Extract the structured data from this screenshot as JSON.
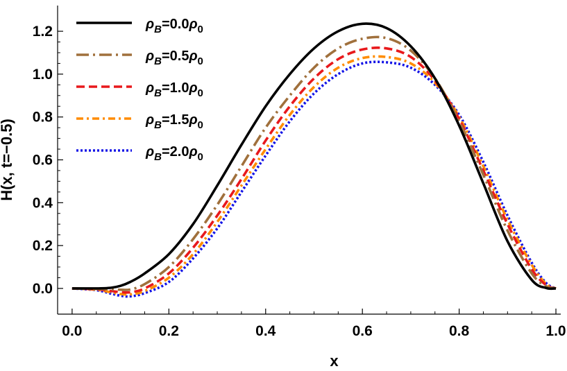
{
  "chart_data": {
    "type": "line",
    "title": "",
    "xlabel": "x",
    "ylabel": "H(x, t=−0.5)",
    "xlim": [
      -0.03,
      1.01
    ],
    "ylim": [
      -0.12,
      1.32
    ],
    "xticks": [
      0.0,
      0.2,
      0.4,
      0.6,
      0.8,
      1.0
    ],
    "xtick_labels": [
      "0.0",
      "0.2",
      "0.4",
      "0.6",
      "0.8",
      "1.0"
    ],
    "yticks": [
      0.0,
      0.2,
      0.4,
      0.6,
      0.8,
      1.0,
      1.2
    ],
    "ytick_labels": [
      "0.0",
      "0.2",
      "0.4",
      "0.6",
      "0.8",
      "1.0",
      "1.2"
    ],
    "grid": false,
    "legend_position": "top-left",
    "x": [
      0.0,
      0.05,
      0.08,
      0.1,
      0.12,
      0.15,
      0.2,
      0.25,
      0.3,
      0.35,
      0.4,
      0.45,
      0.5,
      0.55,
      0.6,
      0.65,
      0.7,
      0.75,
      0.8,
      0.85,
      0.9,
      0.95,
      0.98,
      1.0
    ],
    "series": [
      {
        "name": "ρB=0.0ρ0",
        "legend": {
          "rho": "ρ",
          "sub": "B",
          "eq": "=0.0",
          "rho0": "ρ",
          "sub0": "0"
        },
        "color": "#000000",
        "dash": "solid",
        "values": [
          0.0,
          0.0,
          0.003,
          0.012,
          0.03,
          0.07,
          0.16,
          0.3,
          0.48,
          0.67,
          0.85,
          1.0,
          1.12,
          1.2,
          1.235,
          1.215,
          1.13,
          0.98,
          0.76,
          0.49,
          0.22,
          0.04,
          0.002,
          0.0
        ]
      },
      {
        "name": "ρB=0.5ρ0",
        "legend": {
          "rho": "ρ",
          "sub": "B",
          "eq": "=0.5",
          "rho0": "ρ",
          "sub0": "0"
        },
        "color": "#a0703c",
        "dash": "longdashdot",
        "values": [
          0.0,
          -0.002,
          -0.005,
          -0.006,
          -0.005,
          0.02,
          0.1,
          0.23,
          0.39,
          0.57,
          0.75,
          0.9,
          1.03,
          1.12,
          1.165,
          1.168,
          1.11,
          0.98,
          0.78,
          0.53,
          0.27,
          0.07,
          0.01,
          0.0
        ]
      },
      {
        "name": "ρB=1.0ρ0",
        "legend": {
          "rho": "ρ",
          "sub": "B",
          "eq": "=1.0",
          "rho0": "ρ",
          "sub0": "0"
        },
        "color": "#e8191c",
        "dash": "dashed",
        "values": [
          0.0,
          -0.004,
          -0.012,
          -0.017,
          -0.018,
          0.0,
          0.07,
          0.19,
          0.34,
          0.51,
          0.69,
          0.85,
          0.98,
          1.07,
          1.115,
          1.12,
          1.08,
          0.97,
          0.79,
          0.55,
          0.3,
          0.09,
          0.015,
          0.0
        ]
      },
      {
        "name": "ρB=1.5ρ0",
        "legend": {
          "rho": "ρ",
          "sub": "B",
          "eq": "=1.5",
          "rho0": "ρ",
          "sub0": "0"
        },
        "color": "#ff8c00",
        "dash": "dashdot",
        "values": [
          0.0,
          -0.006,
          -0.018,
          -0.026,
          -0.028,
          -0.012,
          0.05,
          0.16,
          0.31,
          0.48,
          0.65,
          0.81,
          0.94,
          1.03,
          1.075,
          1.08,
          1.05,
          0.96,
          0.8,
          0.57,
          0.32,
          0.11,
          0.02,
          0.0
        ]
      },
      {
        "name": "ρB=2.0ρ0",
        "legend": {
          "rho": "ρ",
          "sub": "B",
          "eq": "=2.0",
          "rho0": "ρ",
          "sub0": "0"
        },
        "color": "#1414e6",
        "dash": "dotted",
        "values": [
          0.0,
          -0.008,
          -0.024,
          -0.034,
          -0.037,
          -0.022,
          0.03,
          0.14,
          0.28,
          0.45,
          0.62,
          0.78,
          0.91,
          1.0,
          1.05,
          1.055,
          1.03,
          0.95,
          0.81,
          0.59,
          0.34,
          0.12,
          0.025,
          0.0
        ]
      }
    ]
  }
}
